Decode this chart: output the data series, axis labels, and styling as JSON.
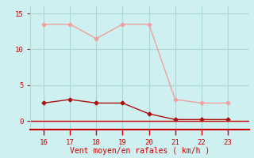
{
  "xlabel": "Vent moyen/en rafales ( km/h )",
  "x": [
    16,
    17,
    18,
    19,
    20,
    21,
    22,
    23
  ],
  "y_rafales": [
    13.5,
    13.5,
    11.5,
    13.5,
    13.5,
    3.0,
    2.5,
    2.5
  ],
  "y_moyen": [
    2.5,
    3.0,
    2.5,
    2.5,
    1.0,
    0.2,
    0.2,
    0.2
  ],
  "color_rafales": "#f0a0a0",
  "color_moyen": "#b01010",
  "bg_color": "#cff0f0",
  "grid_color": "#a8d8d8",
  "axis_line_color": "#cc0000",
  "tick_color": "#cc0000",
  "label_color": "#cc0000",
  "ylim": [
    -1.2,
    16.0
  ],
  "xlim": [
    15.5,
    23.8
  ],
  "yticks": [
    0,
    5,
    10,
    15
  ],
  "xticks": [
    16,
    17,
    18,
    19,
    20,
    21,
    22,
    23
  ]
}
